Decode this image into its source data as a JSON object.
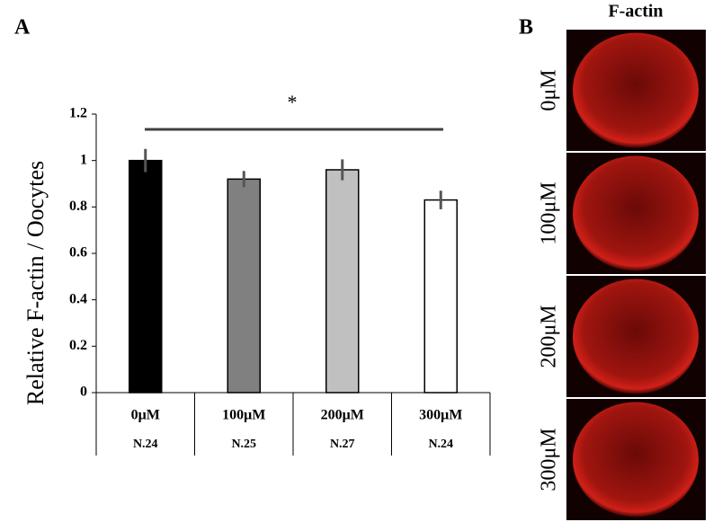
{
  "panel_labels": [
    "A",
    "B"
  ],
  "chart_data": {
    "type": "bar",
    "ylabel": "Relative F-actin / Oocytes",
    "categories": [
      "0μM",
      "100μM",
      "200μM",
      "300μM"
    ],
    "sample_sizes": [
      "N.24",
      "N.25",
      "N.27",
      "N.24"
    ],
    "values": [
      1.0,
      0.92,
      0.96,
      0.83
    ],
    "errors": [
      0.05,
      0.035,
      0.045,
      0.04
    ],
    "colors": [
      "#000000",
      "#808080",
      "#c0c0c0",
      "#ffffff"
    ],
    "ylim": [
      0,
      1.2
    ],
    "yticks": [
      0,
      0.2,
      0.4,
      0.6,
      0.8,
      1,
      1.2
    ],
    "annotation": "*"
  },
  "images": {
    "title": "F-actin"
  }
}
